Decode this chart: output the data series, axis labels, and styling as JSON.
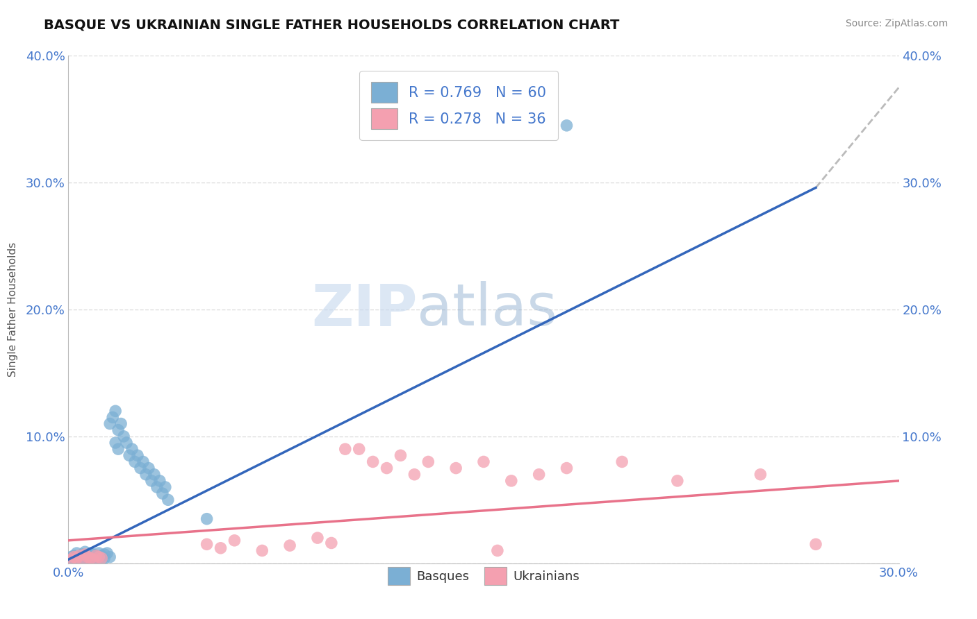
{
  "title": "BASQUE VS UKRAINIAN SINGLE FATHER HOUSEHOLDS CORRELATION CHART",
  "source_text": "Source: ZipAtlas.com",
  "ylabel": "Single Father Households",
  "xlim": [
    0.0,
    0.3
  ],
  "ylim": [
    0.0,
    0.4
  ],
  "basque_color": "#7bafd4",
  "ukrainian_color": "#f4a0b0",
  "basque_line_color": "#3366bb",
  "ukrainian_line_color": "#e8728a",
  "dashed_color": "#bbbbbb",
  "R_basque": 0.769,
  "N_basque": 60,
  "R_ukrainian": 0.278,
  "N_ukrainian": 36,
  "watermark": "ZIPatlas",
  "background_color": "#ffffff",
  "grid_color": "#dddddd",
  "tick_color": "#4477cc",
  "basque_points": [
    [
      0.001,
      0.002
    ],
    [
      0.001,
      0.005
    ],
    [
      0.002,
      0.003
    ],
    [
      0.002,
      0.006
    ],
    [
      0.003,
      0.002
    ],
    [
      0.003,
      0.004
    ],
    [
      0.003,
      0.008
    ],
    [
      0.004,
      0.003
    ],
    [
      0.004,
      0.005
    ],
    [
      0.004,
      0.002
    ],
    [
      0.005,
      0.004
    ],
    [
      0.005,
      0.007
    ],
    [
      0.005,
      0.002
    ],
    [
      0.006,
      0.005
    ],
    [
      0.006,
      0.003
    ],
    [
      0.006,
      0.009
    ],
    [
      0.007,
      0.004
    ],
    [
      0.007,
      0.006
    ],
    [
      0.007,
      0.002
    ],
    [
      0.008,
      0.005
    ],
    [
      0.008,
      0.008
    ],
    [
      0.009,
      0.004
    ],
    [
      0.009,
      0.007
    ],
    [
      0.009,
      0.003
    ],
    [
      0.01,
      0.006
    ],
    [
      0.01,
      0.003
    ],
    [
      0.011,
      0.008
    ],
    [
      0.011,
      0.005
    ],
    [
      0.012,
      0.006
    ],
    [
      0.012,
      0.003
    ],
    [
      0.013,
      0.007
    ],
    [
      0.013,
      0.004
    ],
    [
      0.014,
      0.008
    ],
    [
      0.015,
      0.005
    ],
    [
      0.015,
      0.11
    ],
    [
      0.016,
      0.115
    ],
    [
      0.017,
      0.12
    ],
    [
      0.017,
      0.095
    ],
    [
      0.018,
      0.105
    ],
    [
      0.018,
      0.09
    ],
    [
      0.019,
      0.11
    ],
    [
      0.02,
      0.1
    ],
    [
      0.021,
      0.095
    ],
    [
      0.022,
      0.085
    ],
    [
      0.023,
      0.09
    ],
    [
      0.024,
      0.08
    ],
    [
      0.025,
      0.085
    ],
    [
      0.026,
      0.075
    ],
    [
      0.027,
      0.08
    ],
    [
      0.028,
      0.07
    ],
    [
      0.029,
      0.075
    ],
    [
      0.03,
      0.065
    ],
    [
      0.031,
      0.07
    ],
    [
      0.032,
      0.06
    ],
    [
      0.033,
      0.065
    ],
    [
      0.034,
      0.055
    ],
    [
      0.035,
      0.06
    ],
    [
      0.036,
      0.05
    ],
    [
      0.18,
      0.345
    ],
    [
      0.05,
      0.035
    ]
  ],
  "ukrainian_points": [
    [
      0.001,
      0.003
    ],
    [
      0.002,
      0.005
    ],
    [
      0.003,
      0.004
    ],
    [
      0.004,
      0.006
    ],
    [
      0.005,
      0.003
    ],
    [
      0.006,
      0.007
    ],
    [
      0.007,
      0.005
    ],
    [
      0.008,
      0.004
    ],
    [
      0.009,
      0.003
    ],
    [
      0.01,
      0.006
    ],
    [
      0.011,
      0.005
    ],
    [
      0.012,
      0.004
    ],
    [
      0.05,
      0.015
    ],
    [
      0.055,
      0.012
    ],
    [
      0.06,
      0.018
    ],
    [
      0.07,
      0.01
    ],
    [
      0.08,
      0.014
    ],
    [
      0.09,
      0.02
    ],
    [
      0.095,
      0.016
    ],
    [
      0.1,
      0.09
    ],
    [
      0.105,
      0.09
    ],
    [
      0.11,
      0.08
    ],
    [
      0.115,
      0.075
    ],
    [
      0.12,
      0.085
    ],
    [
      0.125,
      0.07
    ],
    [
      0.13,
      0.08
    ],
    [
      0.14,
      0.075
    ],
    [
      0.15,
      0.08
    ],
    [
      0.155,
      0.01
    ],
    [
      0.16,
      0.065
    ],
    [
      0.17,
      0.07
    ],
    [
      0.18,
      0.075
    ],
    [
      0.2,
      0.08
    ],
    [
      0.22,
      0.065
    ],
    [
      0.25,
      0.07
    ],
    [
      0.27,
      0.015
    ]
  ],
  "basque_line": [
    [
      0.0,
      0.003
    ],
    [
      0.27,
      0.296
    ]
  ],
  "ukrainian_line": [
    [
      0.0,
      0.018
    ],
    [
      0.3,
      0.065
    ]
  ],
  "dashed_line": [
    [
      0.27,
      0.296
    ],
    [
      0.3,
      0.375
    ]
  ]
}
